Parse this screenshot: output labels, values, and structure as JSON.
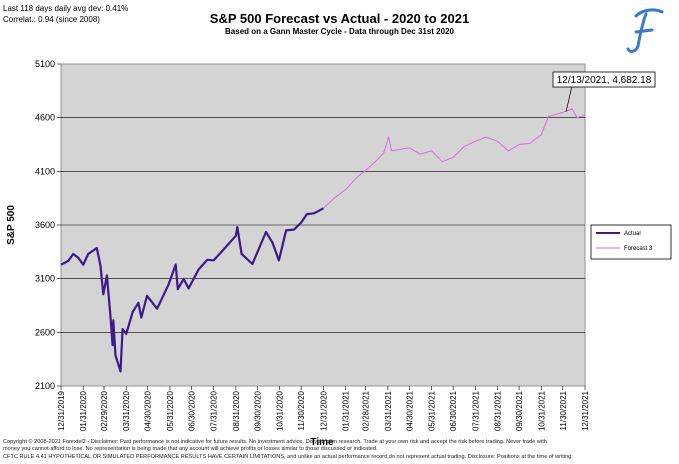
{
  "header": {
    "stats_line1": "Last 118 days daily avg dev: 0.41%",
    "stats_line2": "Correlat.: 0.94 (since 2008)",
    "title": "S&P 500 Forecast vs Actual - 2020 to 2021",
    "subtitle": "Based on a Gann Master Cycle - Data through Dec 31st 2020"
  },
  "logo": {
    "icon": "script-f-logo",
    "color": "#3a78c8"
  },
  "callout": {
    "text": "12/13/2021, 4,682.18",
    "x": "12/13/2021",
    "y": 4682.18
  },
  "footer": {
    "line1": "Copyright © 2008-2021 Forextel2 - Disclaimer: Past performance is not indicative for future results. No investment advice. Do your own research. Trade at your own risk and accept the risk before trading. Never trade with",
    "line2": "money you cannot afford to lose. No representation is being made that any account will achieve profits or losses similar to those discussed or indicated.",
    "line3": "CFTC RULE 4.41 HYPOTHETICAL OR SIMULATED PERFORMANCE RESULTS HAVE CERTAIN LIMITATIONS, and unlike an actual performance record,do not represent actual trading. Disclosure: Positions at the time of writing."
  },
  "chart_data": {
    "type": "line",
    "title": "S&P 500 Forecast vs Actual - 2020 to 2021",
    "subtitle": "Based on a Gann Master Cycle - Data through Dec 31st 2020",
    "xlabel": "Time",
    "ylabel": "S&P 500",
    "ylim": [
      2100,
      5100
    ],
    "yticks": [
      2100,
      2600,
      3100,
      3600,
      4100,
      4600,
      5100
    ],
    "xticks": [
      "12/31/2019",
      "01/31/2020",
      "02/29/2020",
      "03/31/2020",
      "04/30/2020",
      "05/31/2020",
      "06/30/2020",
      "07/31/2020",
      "08/31/2020",
      "09/30/2020",
      "10/31/2020",
      "11/30/2020",
      "12/31/2020",
      "01/31/2021",
      "02/28/2021",
      "03/31/2021",
      "04/30/2021",
      "05/31/2021",
      "06/30/2021",
      "07/31/2021",
      "08/31/2021",
      "09/30/2021",
      "10/31/2021",
      "11/30/2021",
      "12/31/2021"
    ],
    "grid": "horizontal",
    "legend_position": "right",
    "colors": {
      "Actual": "#3a1a8c",
      "Forecast 3": "#e066e8",
      "plot_bg": "#d4d4d4"
    },
    "series": [
      {
        "name": "Actual",
        "points": [
          [
            "12/31/2019",
            3230
          ],
          [
            "01/10/2020",
            3265
          ],
          [
            "01/17/2020",
            3330
          ],
          [
            "01/24/2020",
            3295
          ],
          [
            "01/31/2020",
            3230
          ],
          [
            "02/07/2020",
            3330
          ],
          [
            "02/19/2020",
            3386
          ],
          [
            "02/24/2020",
            3225
          ],
          [
            "02/28/2020",
            2954
          ],
          [
            "03/04/2020",
            3130
          ],
          [
            "03/09/2020",
            2746
          ],
          [
            "03/12/2020",
            2480
          ],
          [
            "03/13/2020",
            2711
          ],
          [
            "03/16/2020",
            2386
          ],
          [
            "03/23/2020",
            2237
          ],
          [
            "03/26/2020",
            2630
          ],
          [
            "03/31/2020",
            2585
          ],
          [
            "04/09/2020",
            2790
          ],
          [
            "04/17/2020",
            2875
          ],
          [
            "04/21/2020",
            2737
          ],
          [
            "04/29/2020",
            2940
          ],
          [
            "05/13/2020",
            2820
          ],
          [
            "05/29/2020",
            3044
          ],
          [
            "06/08/2020",
            3232
          ],
          [
            "06/11/2020",
            3002
          ],
          [
            "06/19/2020",
            3098
          ],
          [
            "06/26/2020",
            3009
          ],
          [
            "07/10/2020",
            3185
          ],
          [
            "07/22/2020",
            3276
          ],
          [
            "07/31/2020",
            3271
          ],
          [
            "08/14/2020",
            3373
          ],
          [
            "08/31/2020",
            3500
          ],
          [
            "09/02/2020",
            3580
          ],
          [
            "09/08/2020",
            3331
          ],
          [
            "09/23/2020",
            3237
          ],
          [
            "10/12/2020",
            3535
          ],
          [
            "10/21/2020",
            3435
          ],
          [
            "10/30/2020",
            3270
          ],
          [
            "11/09/2020",
            3550
          ],
          [
            "11/20/2020",
            3557
          ],
          [
            "11/30/2020",
            3622
          ],
          [
            "12/08/2020",
            3702
          ],
          [
            "12/18/2020",
            3709
          ],
          [
            "12/31/2020",
            3756
          ]
        ]
      },
      {
        "name": "Forecast 3",
        "points": [
          [
            "12/31/2020",
            3756
          ],
          [
            "01/15/2021",
            3850
          ],
          [
            "01/31/2021",
            3930
          ],
          [
            "02/15/2021",
            4040
          ],
          [
            "02/28/2021",
            4110
          ],
          [
            "03/15/2021",
            4200
          ],
          [
            "03/25/2021",
            4270
          ],
          [
            "04/01/2021",
            4420
          ],
          [
            "04/05/2021",
            4290
          ],
          [
            "04/30/2021",
            4320
          ],
          [
            "05/15/2021",
            4260
          ],
          [
            "05/31/2021",
            4290
          ],
          [
            "06/15/2021",
            4190
          ],
          [
            "06/30/2021",
            4230
          ],
          [
            "07/15/2021",
            4330
          ],
          [
            "07/31/2021",
            4380
          ],
          [
            "08/15/2021",
            4420
          ],
          [
            "08/31/2021",
            4380
          ],
          [
            "09/15/2021",
            4290
          ],
          [
            "09/30/2021",
            4350
          ],
          [
            "10/15/2021",
            4360
          ],
          [
            "10/31/2021",
            4440
          ],
          [
            "11/10/2021",
            4610
          ],
          [
            "11/30/2021",
            4650
          ],
          [
            "12/13/2021",
            4682
          ],
          [
            "12/20/2021",
            4600
          ],
          [
            "12/31/2021",
            4620
          ]
        ]
      }
    ]
  }
}
